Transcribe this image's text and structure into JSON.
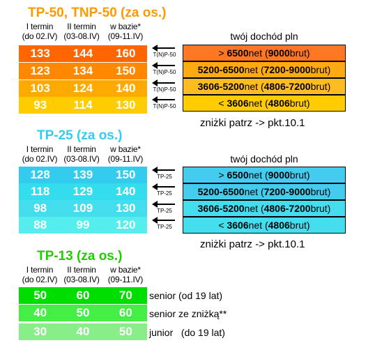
{
  "colors": {
    "tp50_title": "#ff9900",
    "tp25_title": "#33ccee",
    "tp13_title": "#22cc00",
    "tp50_rows": [
      "#ff6600",
      "#ff8800",
      "#ffaa00",
      "#ffcc00"
    ],
    "tp50_boxes": [
      "#ff7722",
      "#ffaa11",
      "#ffbb22",
      "#ffcc00"
    ],
    "tp25_rows": [
      "#33ccee",
      "#33ddee",
      "#44ddee",
      "#55eeee"
    ],
    "tp25_boxes": [
      "#44ccee",
      "#44ccee",
      "#44ddee",
      "#44ddee"
    ],
    "tp13_rows": [
      "#00dd00",
      "#44ee44",
      "#88ee88"
    ]
  },
  "term_headers": [
    [
      "I termin",
      "(do 02.IV)"
    ],
    [
      "II termin",
      "(03-08.IV)"
    ],
    [
      "w bazie*",
      "(09-11.IV)"
    ]
  ],
  "tp50": {
    "title": "TP-50, TNP-50 (za os.)",
    "rows": [
      [
        "133",
        "144",
        "160"
      ],
      [
        "123",
        "134",
        "150"
      ],
      [
        "103",
        "124",
        "140"
      ],
      [
        "93",
        "114",
        "130"
      ]
    ],
    "arrow_label": "T(N)P-50",
    "income_head": "twój dochód pln",
    "income": [
      [
        ">",
        "6500",
        "net (",
        "9000",
        "brut)"
      ],
      [
        "",
        "5200-6500",
        "net (",
        "7200-9000",
        "brut)"
      ],
      [
        "",
        "3606-5200",
        "net (",
        "4806-7200",
        "brut)"
      ],
      [
        "<",
        "3606",
        "net (",
        "4806",
        "brut)"
      ]
    ],
    "note": "zniżki patrz -> pkt.10.1"
  },
  "tp25": {
    "title": "TP-25 (za os.)",
    "rows": [
      [
        "128",
        "139",
        "150"
      ],
      [
        "118",
        "129",
        "140"
      ],
      [
        "98",
        "109",
        "130"
      ],
      [
        "88",
        "99",
        "120"
      ]
    ],
    "arrow_label": "TP-25",
    "income_head": "twój dochód pln",
    "income": [
      [
        ">",
        "6500",
        "net (",
        "9000",
        "brut)"
      ],
      [
        "",
        "5200-6500",
        "net (",
        "7200-9000",
        "brut)"
      ],
      [
        "",
        "3606-5200",
        "net (",
        "4806-7200",
        "brut)"
      ],
      [
        "<",
        "3606",
        "net (",
        "4806",
        "brut)"
      ]
    ],
    "note": "zniżki patrz -> pkt.10.1"
  },
  "tp13": {
    "title": "TP-13 (za os.)",
    "rows": [
      [
        "50",
        "60",
        "70"
      ],
      [
        "40",
        "50",
        "60"
      ],
      [
        "30",
        "40",
        "50"
      ]
    ],
    "labels": [
      "senior (od 19 lat)",
      "senior ze zniżką**",
      "junior   (do 19 lat)"
    ]
  }
}
